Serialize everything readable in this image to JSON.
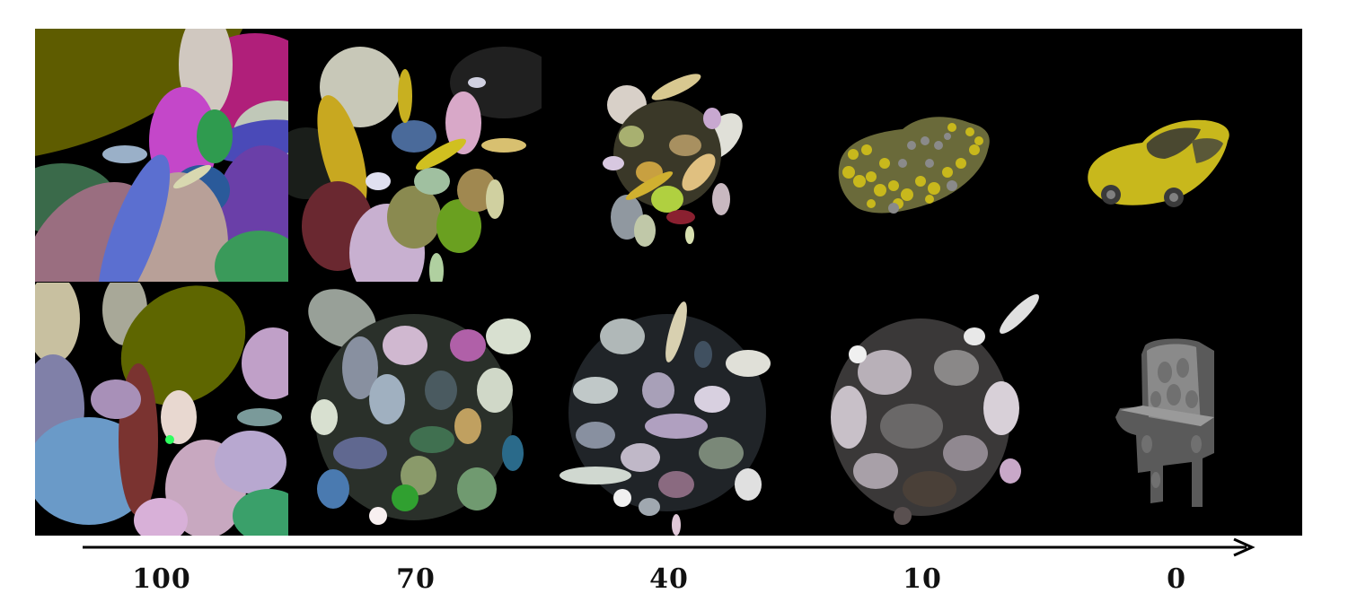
{
  "steps": [
    "100",
    "70",
    "40",
    "10",
    "0"
  ],
  "rows": [
    {
      "object": "car",
      "colors": {
        "car_body": "#c8b81c",
        "car_shadow": "#4a4830"
      }
    },
    {
      "object": "chair",
      "colors": {
        "chair_light": "#8a8a8a",
        "chair_dark": "#3a3a3a"
      }
    }
  ],
  "palette_row1": [
    "#6b6a00",
    "#b01f7a",
    "#c447c9",
    "#4a4ab8",
    "#9a6e80",
    "#b8a098",
    "#2f9b4f",
    "#d0d0c0",
    "#5b6fd0",
    "#d8c8b8"
  ],
  "palette_row2": [
    "#6a6d00",
    "#7a3330",
    "#8aa6c8",
    "#c09cc0",
    "#b8a8d0",
    "#e8d8d0",
    "#3aa06a",
    "#9f8f6a",
    "#4f7fa0",
    "#d8b8d8"
  ]
}
